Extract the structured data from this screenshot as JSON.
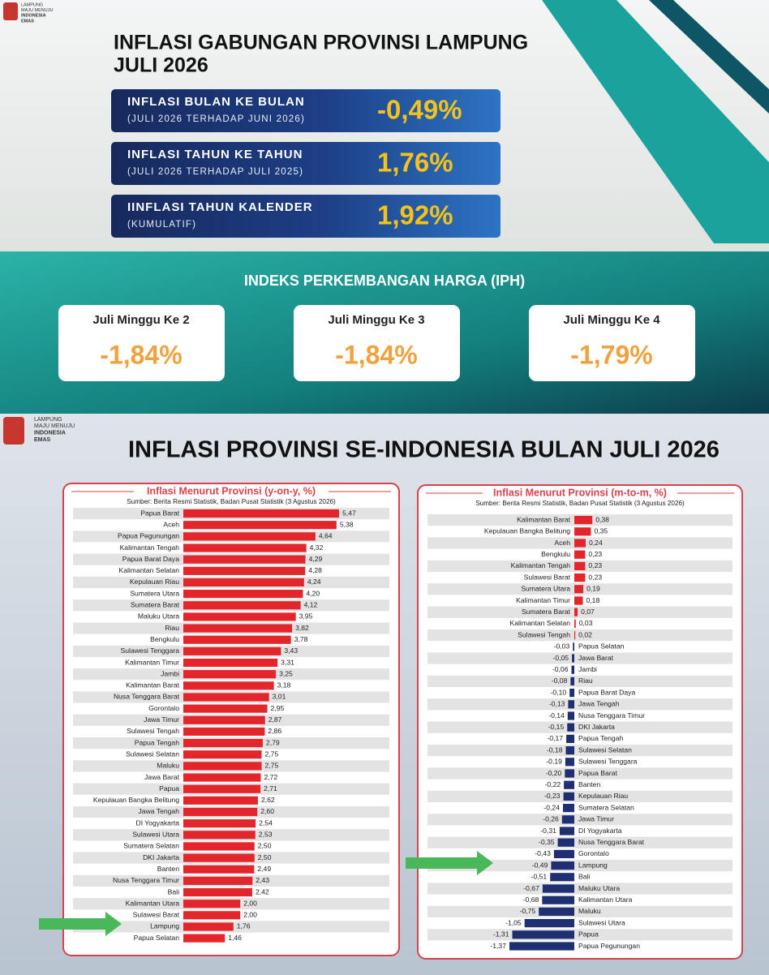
{
  "header": {
    "logo_text": [
      "LAMPUNG",
      "MAJU MENUJU",
      "INDONESIA",
      "EMAS"
    ]
  },
  "summary": {
    "title": [
      "INFLASI GABUNGAN PROVINSI LAMPUNG",
      "JULI 2026"
    ],
    "items": [
      {
        "label": "INFLASI BULAN KE BULAN",
        "sublabel": "(JULI 2026 TERHADAP JUNI 2026)",
        "value": "-0,49%"
      },
      {
        "label": "INFLASI TAHUN KE TAHUN",
        "sublabel": "(JULI 2026 TERHADAP JULI 2025)",
        "value": "1,76%"
      },
      {
        "label": "IINFLASI TAHUN KALENDER",
        "sublabel": "(KUMULATIF)",
        "value": "1,92%"
      }
    ]
  },
  "iph": {
    "title": "INDEKS PERKEMBANGAN HARGA (IPH)",
    "items": [
      {
        "label": "Juli Minggu Ke 2",
        "value": "-1,84%"
      },
      {
        "label": "Juli Minggu Ke 3",
        "value": "-1,84%"
      },
      {
        "label": "Juli Minggu Ke 4",
        "value": "-1,79%"
      }
    ]
  },
  "section2": {
    "logo_text": [
      "LAMPUNG",
      "MAJU MENUJU",
      "INDONESIA",
      "EMAS"
    ],
    "title": "INFLASI PROVINSI  SE-INDONESIA BULAN JULI 2026"
  },
  "chart_data": [
    {
      "type": "bar",
      "orientation": "horizontal",
      "title": "Inflasi Menurut Provinsi (y-on-y, %)",
      "subtitle": "Sumber: Berita Resmi Statistik, Badan Pusat Statistik (3 Agustus 2026)",
      "color": "#e3262b",
      "categories": [
        "Papua Barat",
        "Aceh",
        "Papua Pegunungan",
        "Kalimantan Tengah",
        "Papua Barat Daya",
        "Kalimantan Selatan",
        "Kepulauan Riau",
        "Sumatera Utara",
        "Sumatera Barat",
        "Maluku Utara",
        "Riau",
        "Bengkulu",
        "Sulawesi Tenggara",
        "Kalimantan Timur",
        "Jambi",
        "Kalimantan Barat",
        "Nusa Tenggara Barat",
        "Gorontalo",
        "Jawa Timur",
        "Sulawesi Tengah",
        "Papua Tengah",
        "Sulawesi Selatan",
        "Maluku",
        "Jawa Barat",
        "Papua",
        "Kepulauan Bangka Belitung",
        "Jawa Tengah",
        "DI Yogyakarta",
        "Sulawesi Utara",
        "Sumatera Selatan",
        "DKI Jakarta",
        "Banten",
        "Nusa Tenggara Timur",
        "Bali",
        "Kalimantan Utara",
        "Sulawesi Barat",
        "Lampung",
        "Papua Selatan"
      ],
      "values": [
        5.47,
        5.38,
        4.64,
        4.32,
        4.29,
        4.28,
        4.24,
        4.2,
        4.12,
        3.95,
        3.82,
        3.78,
        3.43,
        3.31,
        3.25,
        3.18,
        3.01,
        2.95,
        2.87,
        2.86,
        2.79,
        2.75,
        2.75,
        2.72,
        2.71,
        2.62,
        2.6,
        2.54,
        2.53,
        2.5,
        2.5,
        2.49,
        2.43,
        2.42,
        2.0,
        2.0,
        1.76,
        1.46
      ],
      "value_labels": [
        "5,47",
        "5,38",
        "4,64",
        "4,32",
        "4,29",
        "4,28",
        "4,24",
        "4,20",
        "4,12",
        "3,95",
        "3,82",
        "3,78",
        "3,43",
        "3,31",
        "3,25",
        "3,18",
        "3,01",
        "2,95",
        "2,87",
        "2,86",
        "2,79",
        "2,75",
        "2,75",
        "2,72",
        "2,71",
        "2,62",
        "2,60",
        "2,54",
        "2,53",
        "2,50",
        "2,50",
        "2,49",
        "2,43",
        "2,42",
        "2,00",
        "2,00",
        "1,76",
        "1,46"
      ]
    },
    {
      "type": "bar",
      "orientation": "horizontal",
      "title": "Inflasi Menurut Provinsi (m-to-m, %)",
      "subtitle": "Sumber: Berita Resmi Statistik, Badan Pusat Statistik (3 Agustus 2026)",
      "color": "#e3262b",
      "negative_color": "#1f3072",
      "categories": [
        "Kalimantan Barat",
        "Kepulauan Bangka Belitung",
        "Aceh",
        "Bengkulu",
        "Kalimantan Tengah",
        "Sulawesi Barat",
        "Sumatera Utara",
        "Kalimantan Timur",
        "Sumatera Barat",
        "Kalimantan Selatan",
        "Sulawesi Tengah",
        "Papua Selatan",
        "Jawa Barat",
        "Jambi",
        "Riau",
        "Papua Barat Daya",
        "Jawa Tengah",
        "Nusa Tenggara Timur",
        "DKI Jakarta",
        "Papua Tengah",
        "Sulawesi Selatan",
        "Sulawesi Tenggara",
        "Papua Barat",
        "Banten",
        "Kepulauan Riau",
        "Sumatera Selatan",
        "Jawa Timur",
        "DI Yogyakarta",
        "Nusa Tenggara Barat",
        "Gorontalo",
        "Lampung",
        "Bali",
        "Maluku Utara",
        "Kalimantan Utara",
        "Maluku",
        "Sulawesi Utara",
        "Papua",
        "Papua Pegunungan"
      ],
      "values": [
        0.38,
        0.35,
        0.24,
        0.23,
        0.23,
        0.23,
        0.19,
        0.18,
        0.07,
        0.03,
        0.02,
        -0.03,
        -0.05,
        -0.06,
        -0.08,
        -0.1,
        -0.13,
        -0.14,
        -0.15,
        -0.17,
        -0.18,
        -0.19,
        -0.2,
        -0.22,
        -0.23,
        -0.24,
        -0.26,
        -0.31,
        -0.35,
        -0.43,
        -0.49,
        -0.51,
        -0.67,
        -0.68,
        -0.75,
        -1.05,
        -1.31,
        -1.37
      ],
      "value_labels": [
        "0,38",
        "0,35",
        "0,24",
        "0,23",
        "0,23",
        "0,23",
        "0,19",
        "0,18",
        "0,07",
        "0,03",
        "0,02",
        "-0,03",
        "-0,05",
        "-0,06",
        "-0,08",
        "-0,10",
        "-0,13",
        "-0,14",
        "-0,15",
        "-0,17",
        "-0,18",
        "-0,19",
        "-0,20",
        "-0,22",
        "-0,23",
        "-0,24",
        "-0,26",
        "-0,31",
        "-0,35",
        "-0,43",
        "-0,49",
        "-0,51",
        "-0,67",
        "-0,68",
        "-0,75",
        "-1,05",
        "-1,31",
        "-1,37"
      ]
    }
  ]
}
